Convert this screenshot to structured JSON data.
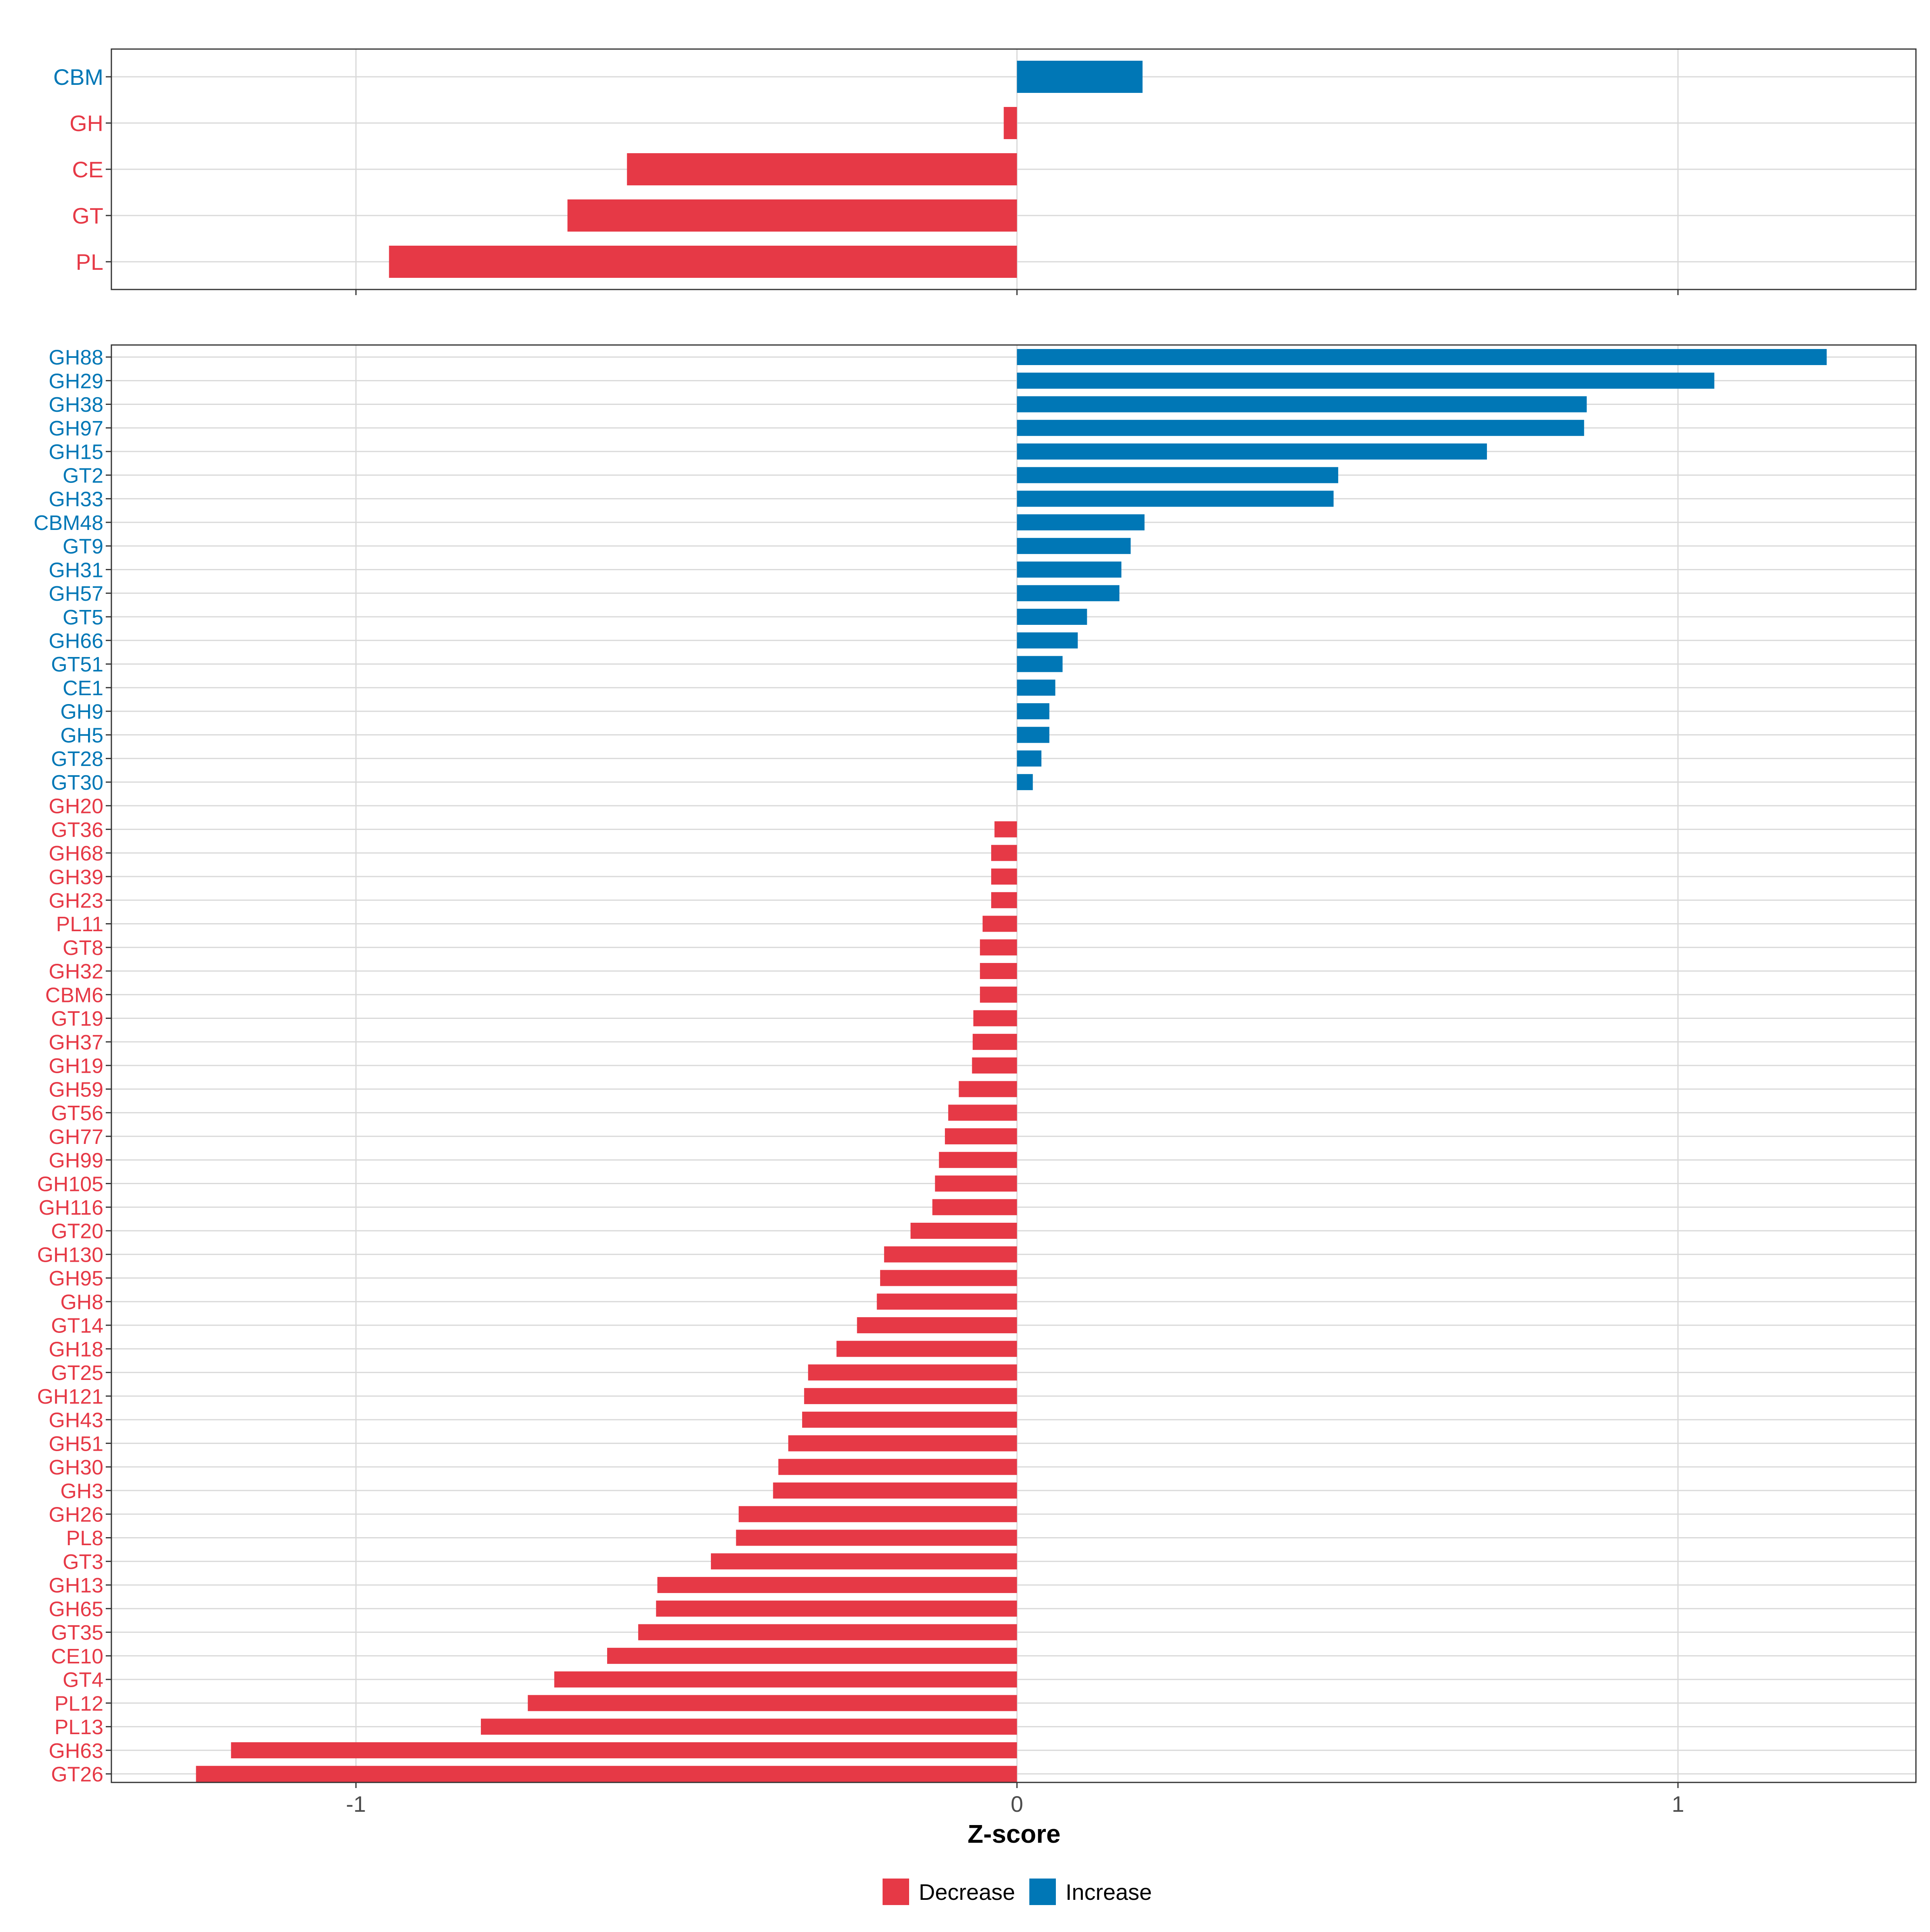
{
  "chart_data": [
    {
      "type": "bar",
      "orientation": "horizontal",
      "panel": "top",
      "categories": [
        "CBM",
        "GH",
        "CE",
        "GT",
        "PL"
      ],
      "values": [
        0.19,
        -0.02,
        -0.59,
        -0.68,
        -0.95
      ],
      "xlim": [
        -1.37,
        1.36
      ],
      "xticks": [
        -1,
        0,
        1
      ],
      "grid": true
    },
    {
      "type": "bar",
      "orientation": "horizontal",
      "panel": "bottom",
      "categories": [
        "GH88",
        "GH29",
        "GH38",
        "GH97",
        "GH15",
        "GT2",
        "GH33",
        "CBM48",
        "GT9",
        "GH31",
        "GH57",
        "GT5",
        "GH66",
        "GT51",
        "CE1",
        "GH9",
        "GH5",
        "GT28",
        "GT30",
        "GH20",
        "GT36",
        "GH68",
        "GH39",
        "GH23",
        "PL11",
        "GT8",
        "GH32",
        "CBM6",
        "GT19",
        "GH37",
        "GH19",
        "GH59",
        "GT56",
        "GH77",
        "GH99",
        "GH105",
        "GH116",
        "GT20",
        "GH130",
        "GH95",
        "GH8",
        "GT14",
        "GH18",
        "GT25",
        "GH121",
        "GH43",
        "GH51",
        "GH30",
        "GH3",
        "GH26",
        "PL8",
        "GT3",
        "GH13",
        "GH65",
        "GT35",
        "CE10",
        "GT4",
        "PL12",
        "PL13",
        "GH63",
        "GT26"
      ],
      "values": [
        1.225,
        1.055,
        0.862,
        0.858,
        0.711,
        0.486,
        0.479,
        0.193,
        0.172,
        0.158,
        0.155,
        0.106,
        0.092,
        0.069,
        0.058,
        0.049,
        0.049,
        0.037,
        0.024,
        0.0,
        -0.034,
        -0.039,
        -0.039,
        -0.039,
        -0.052,
        -0.056,
        -0.056,
        -0.056,
        -0.066,
        -0.067,
        -0.068,
        -0.088,
        -0.104,
        -0.109,
        -0.118,
        -0.124,
        -0.128,
        -0.161,
        -0.201,
        -0.207,
        -0.212,
        -0.242,
        -0.273,
        -0.316,
        -0.322,
        -0.325,
        -0.346,
        -0.361,
        -0.369,
        -0.421,
        -0.425,
        -0.463,
        -0.544,
        -0.546,
        -0.573,
        -0.62,
        -0.7,
        -0.74,
        -0.811,
        -1.189,
        -1.242
      ],
      "xlim": [
        -1.37,
        1.36
      ],
      "xticks": [
        -1,
        0,
        1
      ],
      "xticklabels": [
        "-1",
        "0",
        "1"
      ],
      "xlabel": "Z-score",
      "grid": true
    }
  ],
  "legend": {
    "position": "bottom",
    "items": [
      {
        "label": "Decrease",
        "color": "#E63946"
      },
      {
        "label": "Increase",
        "color": "#0077B6"
      }
    ]
  },
  "colors": {
    "decrease": "#E63946",
    "increase": "#0077B6",
    "grid": "#D9D9D9",
    "axis_text": "#4D4D4D",
    "title_text": "#000000"
  }
}
